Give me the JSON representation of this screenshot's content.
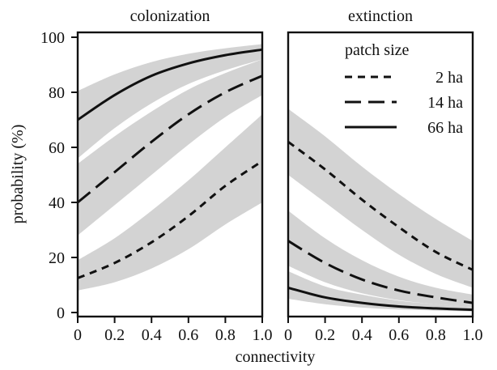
{
  "chart_data": {
    "type": "line",
    "ylabel": "probability (%)",
    "xlabel": "connectivity",
    "xlim": [
      0,
      1
    ],
    "ylim": [
      0,
      100
    ],
    "x_ticks": [
      "0",
      "0.2",
      "0.4",
      "0.6",
      "0.8",
      "1.0"
    ],
    "y_ticks": [
      "0",
      "20",
      "40",
      "60",
      "80",
      "100"
    ],
    "grid": false,
    "legend": {
      "title": "patch size",
      "placement": "top-right of right panel",
      "entries": [
        {
          "label": "2 ha",
          "style": "short-dash"
        },
        {
          "label": "14 ha",
          "style": "long-dash"
        },
        {
          "label": "66 ha",
          "style": "solid"
        }
      ]
    },
    "panels": [
      {
        "title": "colonization",
        "series": [
          {
            "name": "2 ha",
            "style": "short-dash",
            "x": [
              0,
              0.2,
              0.4,
              0.6,
              0.8,
              1.0
            ],
            "y": [
              12.5,
              18,
              25.5,
              35,
              46,
              55
            ],
            "lower": [
              8,
              11,
              16,
              23,
              32,
              40
            ],
            "upper": [
              19,
              27,
              37,
              48,
              60,
              72
            ]
          },
          {
            "name": "14 ha",
            "style": "long-dash",
            "x": [
              0,
              0.2,
              0.4,
              0.6,
              0.8,
              1.0
            ],
            "y": [
              40,
              51,
              62,
              72,
              80,
              86
            ],
            "lower": [
              28,
              39,
              50,
              61,
              71,
              79
            ],
            "upper": [
              54,
              64,
              73,
              81,
              87,
              92
            ]
          },
          {
            "name": "66 ha",
            "style": "solid",
            "x": [
              0,
              0.2,
              0.4,
              0.6,
              0.8,
              1.0
            ],
            "y": [
              70,
              79,
              86,
              90.5,
              93.5,
              95.5
            ],
            "lower": [
              56,
              67,
              76,
              83,
              88,
              92
            ],
            "upper": [
              80.5,
              86.5,
              91,
              94,
              96,
              97.5
            ]
          }
        ]
      },
      {
        "title": "extinction",
        "series": [
          {
            "name": "2 ha",
            "style": "short-dash",
            "x": [
              0,
              0.2,
              0.4,
              0.6,
              0.8,
              1.0
            ],
            "y": [
              62,
              52,
              41,
              31,
              22,
              15.5
            ],
            "lower": [
              50,
              40,
              30,
              21,
              14,
              9
            ],
            "upper": [
              74,
              64,
              53,
              43,
              34,
              26
            ]
          },
          {
            "name": "14 ha",
            "style": "long-dash",
            "x": [
              0,
              0.2,
              0.4,
              0.6,
              0.8,
              1.0
            ],
            "y": [
              26,
              18,
              12,
              8,
              5.5,
              3.5
            ],
            "lower": [
              17,
              11,
              7,
              4.5,
              3,
              2
            ],
            "upper": [
              37,
              27,
              19,
              13,
              9,
              6.5
            ]
          },
          {
            "name": "66 ha",
            "style": "solid",
            "x": [
              0,
              0.2,
              0.4,
              0.6,
              0.8,
              1.0
            ],
            "y": [
              9,
              5.5,
              3.5,
              2.2,
              1.5,
              1
            ],
            "lower": [
              5,
              3,
              1.8,
              1.1,
              0.7,
              0.4
            ],
            "upper": [
              15,
              9.5,
              6.5,
              4.3,
              3,
              2
            ]
          }
        ]
      }
    ]
  }
}
